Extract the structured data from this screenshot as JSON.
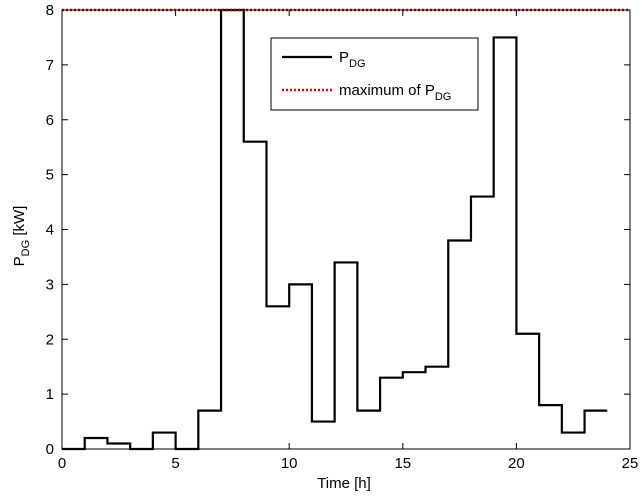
{
  "chart_data": {
    "type": "line",
    "title": "",
    "xlabel": "Time [h]",
    "ylabel": {
      "main": "P",
      "sub": "DG",
      "unit": " [kW]"
    },
    "xlim": [
      0,
      25
    ],
    "ylim": [
      0,
      8
    ],
    "xticks": [
      0,
      5,
      10,
      15,
      20,
      25
    ],
    "yticks": [
      0,
      1,
      2,
      3,
      4,
      5,
      6,
      7,
      8
    ],
    "grid": false,
    "legend_position": "top-center",
    "series": [
      {
        "name": {
          "main": "P",
          "sub": "DG"
        },
        "style": "step",
        "color": "#000000",
        "x": [
          0,
          1,
          2,
          3,
          4,
          5,
          6,
          7,
          8,
          9,
          10,
          11,
          12,
          13,
          14,
          15,
          16,
          17,
          18,
          19,
          20,
          21,
          22,
          23
        ],
        "values": [
          0,
          0.2,
          0.1,
          0,
          0.3,
          0,
          0.7,
          8,
          5.6,
          2.6,
          3,
          0.5,
          3.4,
          0.7,
          1.3,
          1.4,
          1.5,
          3.8,
          4.6,
          7.5,
          2.1,
          0.8,
          0.3,
          0.7
        ]
      },
      {
        "name": {
          "main": "maximum of P",
          "sub": "DG"
        },
        "style": "dotted",
        "color": "#ff0000",
        "x": [
          0,
          25
        ],
        "values": [
          8,
          8
        ]
      }
    ]
  }
}
